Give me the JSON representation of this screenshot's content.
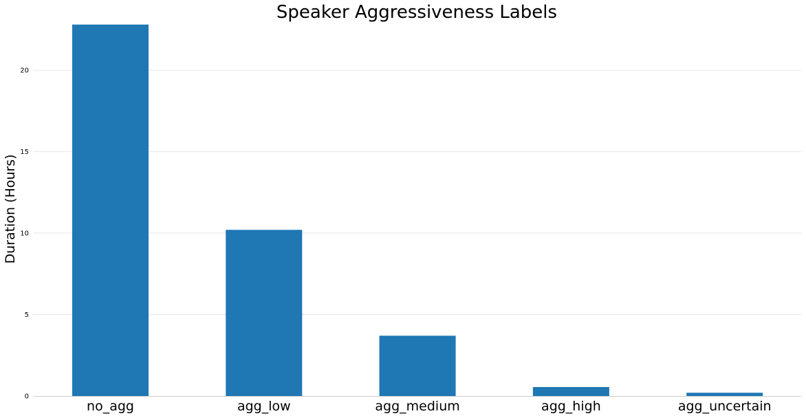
{
  "chart_data": {
    "type": "bar",
    "title": "Speaker Aggressiveness Labels",
    "xlabel": "",
    "ylabel": "Duration (Hours)",
    "categories": [
      "no_agg",
      "agg_low",
      "agg_medium",
      "agg_high",
      "agg_uncertain"
    ],
    "values": [
      22.8,
      10.2,
      3.7,
      0.55,
      0.2
    ],
    "ylim": [
      0,
      23.0
    ],
    "yticks": [
      0,
      5,
      10,
      15,
      20
    ],
    "grid": true,
    "bar_color": "#1f77b4",
    "legend": "none"
  }
}
